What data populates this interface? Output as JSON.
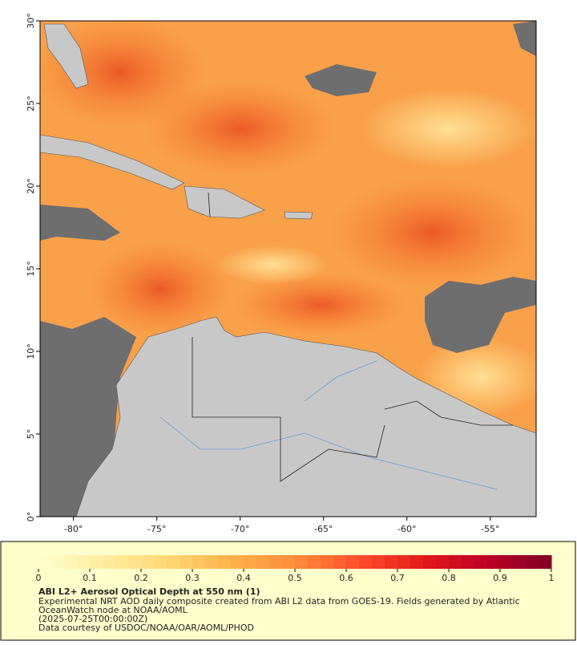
{
  "map": {
    "xlim": [
      -82,
      -52.25
    ],
    "ylim": [
      0,
      30
    ],
    "lon_ticks": [
      {
        "value": -80,
        "label": "-80°"
      },
      {
        "value": -75,
        "label": "-75°"
      },
      {
        "value": -70,
        "label": "-70°"
      },
      {
        "value": -65,
        "label": "-65°"
      },
      {
        "value": -60,
        "label": "-60°"
      },
      {
        "value": -55,
        "label": "-55°"
      }
    ],
    "lat_ticks": [
      {
        "value": 0,
        "label": "0°"
      },
      {
        "value": 5,
        "label": "5°"
      },
      {
        "value": 10,
        "label": "10°"
      },
      {
        "value": 15,
        "label": "15°"
      },
      {
        "value": 20,
        "label": "20°"
      },
      {
        "value": 25,
        "label": "25°"
      },
      {
        "value": 30,
        "label": "30°"
      }
    ],
    "colorbar": {
      "lim": [
        0,
        1
      ],
      "ticks": [
        0,
        0.1,
        0.2,
        0.3,
        0.4,
        0.5,
        0.6,
        0.7,
        0.8,
        0.9,
        1
      ],
      "colors": [
        "#ffffcc",
        "#ffeda0",
        "#fed976",
        "#feb24c",
        "#fd8d3c",
        "#fc4e2a",
        "#e31a1c",
        "#bd0026",
        "#800026"
      ]
    },
    "title": "ABI L2+ Aerosol Optical Depth at 550 nm (1)",
    "caption": [
      "Experimental NRT AOD daily composite created from ABI L2 data from GOES-19. Fields generated by Atlantic",
      "OceanWatch node at NOAA/AOML",
      "(2025-07-25T00:00:00Z)",
      "Data courtesy of USDOC/NOAA/OAR/AOML/PHOD"
    ]
  }
}
